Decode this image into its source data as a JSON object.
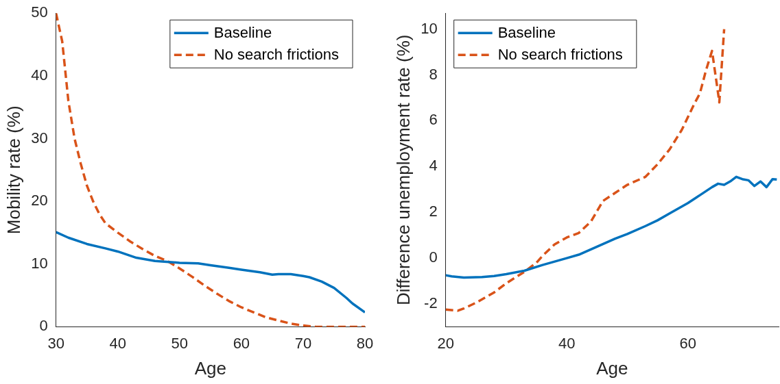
{
  "chart_data": [
    {
      "type": "line",
      "xlabel": "Age",
      "ylabel": "Mobility rate (%)",
      "xlim": [
        30,
        80
      ],
      "xticks": [
        30,
        40,
        50,
        60,
        70,
        80
      ],
      "ylim": [
        0,
        50
      ],
      "yticks": [
        0,
        10,
        20,
        30,
        40,
        50
      ],
      "grid": false,
      "legend": "top right",
      "marker": "none",
      "series": [
        {
          "name": "Baseline",
          "color": "#0072bd",
          "line_style": "solid",
          "x": [
            30,
            32,
            35,
            38,
            40,
            43,
            46,
            50,
            53,
            55,
            58,
            60,
            63,
            65,
            66,
            68,
            70,
            71,
            73,
            75,
            77,
            78,
            80
          ],
          "values": [
            15.1,
            14.2,
            13.2,
            12.5,
            12.0,
            11.0,
            10.5,
            10.2,
            10.1,
            9.8,
            9.4,
            9.1,
            8.7,
            8.3,
            8.4,
            8.4,
            8.1,
            7.9,
            7.2,
            6.2,
            4.6,
            3.7,
            2.3
          ]
        },
        {
          "name": "No search frictions",
          "color": "#d95319",
          "line_style": "dashed",
          "x": [
            30,
            31,
            32,
            33,
            34,
            35,
            36,
            37,
            38,
            40,
            42,
            44,
            46,
            48,
            50,
            52,
            54,
            56,
            58,
            60,
            62,
            64,
            66,
            68,
            70,
            72,
            74,
            76,
            80
          ],
          "values": [
            50,
            45.5,
            36,
            30,
            26,
            22.5,
            20,
            18,
            16.5,
            15,
            13.6,
            12.4,
            11.3,
            10.5,
            9.3,
            8.0,
            6.6,
            5.3,
            4.1,
            3.1,
            2.3,
            1.5,
            1.0,
            0.5,
            0.2,
            0,
            0,
            0,
            0
          ]
        }
      ]
    },
    {
      "type": "line",
      "xlabel": "Age",
      "ylabel": "Difference unemployment rate (%)",
      "xlim": [
        20,
        75
      ],
      "xticks": [
        20,
        40,
        60
      ],
      "ylim": [
        -3,
        10.7
      ],
      "yticks": [
        -2,
        0,
        2,
        4,
        6,
        8,
        10
      ],
      "grid": false,
      "legend": "top left",
      "marker": "none",
      "series": [
        {
          "name": "Baseline",
          "color": "#0072bd",
          "line_style": "solid",
          "x": [
            20,
            21,
            23,
            26,
            28,
            30,
            33,
            36,
            40,
            42,
            45,
            48,
            50,
            53,
            55,
            57,
            60,
            62,
            64,
            65,
            66,
            67,
            68,
            69,
            70,
            71,
            72,
            73,
            74,
            74.7
          ],
          "values": [
            -0.75,
            -0.8,
            -0.85,
            -0.83,
            -0.78,
            -0.7,
            -0.55,
            -0.3,
            0.0,
            0.15,
            0.5,
            0.85,
            1.05,
            1.4,
            1.65,
            1.95,
            2.4,
            2.75,
            3.1,
            3.25,
            3.2,
            3.35,
            3.55,
            3.45,
            3.4,
            3.15,
            3.35,
            3.1,
            3.45,
            3.43
          ]
        },
        {
          "name": "No search frictions",
          "color": "#d95319",
          "line_style": "dashed",
          "x": [
            20,
            22,
            23,
            25,
            28,
            30,
            33,
            35,
            36,
            38,
            40,
            42,
            44,
            46,
            48,
            50,
            53,
            55,
            57,
            59,
            61,
            62,
            63,
            64,
            65,
            65.2,
            65.5,
            66
          ],
          "values": [
            -2.25,
            -2.3,
            -2.2,
            -1.95,
            -1.5,
            -1.1,
            -0.6,
            -0.2,
            0.1,
            0.6,
            0.9,
            1.1,
            1.6,
            2.5,
            2.85,
            3.2,
            3.55,
            4.1,
            4.75,
            5.6,
            6.7,
            7.2,
            8.2,
            9.05,
            7.2,
            6.8,
            8.0,
            10
          ]
        }
      ]
    }
  ]
}
